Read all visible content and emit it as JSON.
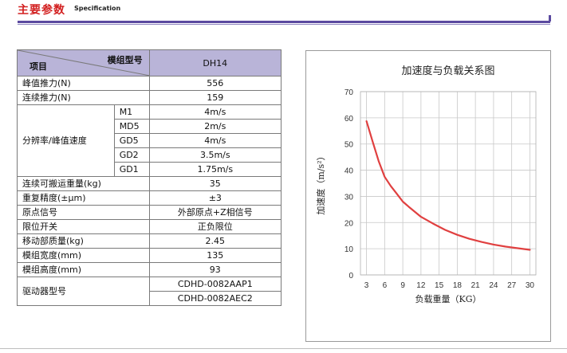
{
  "header": {
    "title": "主要参数",
    "subtitle": "Specification"
  },
  "spec_table": {
    "corner_top": "模组型号",
    "corner_bottom": "项目",
    "model": "DH14",
    "peak_force_label": "峰值推力(N)",
    "peak_force_value": "556",
    "cont_force_label": "连续推力(N)",
    "cont_force_value": "159",
    "resolution_label": "分辨率/峰值速度",
    "resolution_rows": [
      {
        "code": "M1",
        "value": "4m/s"
      },
      {
        "code": "MD5",
        "value": "2m/s"
      },
      {
        "code": "GD5",
        "value": "4m/s"
      },
      {
        "code": "GD2",
        "value": "3.5m/s"
      },
      {
        "code": "GD1",
        "value": "1.75m/s"
      }
    ],
    "rows": [
      {
        "label": "连续可搬运重量(kg)",
        "value": "35"
      },
      {
        "label": "重复精度(±μm)",
        "value": "±3"
      },
      {
        "label": "原点信号",
        "value": "外部原点+Z相信号"
      },
      {
        "label": "限位开关",
        "value": "正负限位"
      },
      {
        "label": "移动部质量(kg)",
        "value": "2.45"
      },
      {
        "label": "模组宽度(mm)",
        "value": "135"
      },
      {
        "label": "模组高度(mm)",
        "value": "93"
      }
    ],
    "driver_label": "驱动器型号",
    "driver_values": [
      "CDHD-0082AAP1",
      "CDHD-0082AEC2"
    ]
  },
  "chart_data": {
    "type": "line",
    "title": "加速度与负载关系图",
    "xlabel": "负载重量（KG）",
    "ylabel": "加速度（m/s²）",
    "xlim": [
      2,
      31
    ],
    "ylim": [
      0,
      70
    ],
    "x_ticks": [
      3,
      6,
      9,
      12,
      15,
      18,
      21,
      24,
      27,
      30
    ],
    "y_ticks": [
      0,
      10,
      20,
      30,
      40,
      50,
      60,
      70
    ],
    "grid": true,
    "line_color": "#e04040",
    "series": [
      {
        "x": [
          3,
          4,
          5,
          6,
          7,
          8,
          9,
          10,
          12,
          14,
          16,
          18,
          20,
          22,
          24,
          26,
          28,
          30
        ],
        "values": [
          58.7,
          51,
          43.5,
          37.5,
          34,
          31,
          28,
          26,
          22.2,
          19.6,
          17.2,
          15.3,
          13.8,
          12.6,
          11.6,
          10.8,
          10.2,
          9.6
        ]
      }
    ]
  }
}
